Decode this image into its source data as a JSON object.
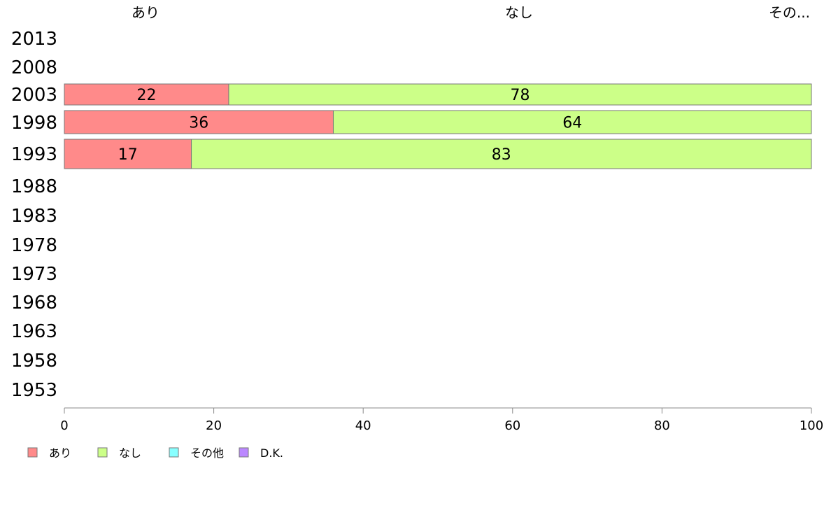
{
  "chart_data": {
    "type": "bar",
    "orientation": "horizontal",
    "stacked": true,
    "categories": [
      "2013",
      "2008",
      "2003",
      "1998",
      "1993",
      "1988",
      "1983",
      "1978",
      "1973",
      "1968",
      "1963",
      "1958",
      "1953"
    ],
    "series": [
      {
        "name": "あり",
        "color": "#ff8a8a",
        "values": [
          null,
          null,
          22,
          36,
          17,
          null,
          null,
          null,
          null,
          null,
          null,
          null,
          null
        ]
      },
      {
        "name": "なし",
        "color": "#ccff88",
        "values": [
          null,
          null,
          78,
          64,
          83,
          null,
          null,
          null,
          null,
          null,
          null,
          null,
          null
        ]
      },
      {
        "name": "その他",
        "color": "#88ffff",
        "values": [
          null,
          null,
          0,
          0,
          0,
          null,
          null,
          null,
          null,
          null,
          null,
          null,
          null
        ]
      },
      {
        "name": "D.K.",
        "color": "#bb88ff",
        "values": [
          null,
          null,
          0,
          0,
          0,
          null,
          null,
          null,
          null,
          null,
          null,
          null,
          null
        ]
      }
    ],
    "top_labels": [
      "あり",
      "なし",
      "その..."
    ],
    "data_labels": [
      {
        "year": "2003",
        "values": [
          "22",
          "78"
        ]
      },
      {
        "year": "1998",
        "values": [
          "36",
          "64"
        ]
      },
      {
        "year": "1993",
        "values": [
          "17",
          "83"
        ]
      }
    ],
    "xticks": [
      0,
      20,
      40,
      60,
      80,
      100
    ],
    "xlim": [
      0,
      100
    ],
    "legend": "bottom-left",
    "grid": false
  }
}
